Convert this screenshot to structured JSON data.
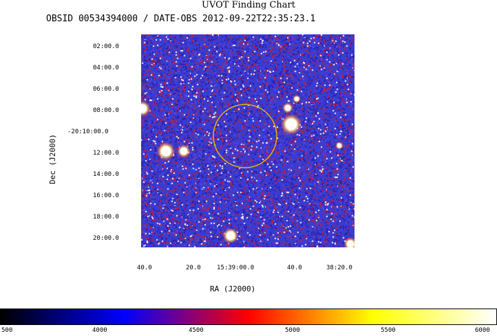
{
  "title": "UVOT Finding Chart",
  "subtitle": "OBSID 00534394000 / DATE-OBS 2012-09-22T22:35:23.1",
  "y_axis": {
    "label": "Dec (J2000)",
    "ticks": [
      "02:00.0",
      "04:00.0",
      "06:00.0",
      "08:00.0",
      "-20:10:00.0",
      "12:00.0",
      "14:00.0",
      "16:00.0",
      "18:00.0",
      "20:00.0"
    ]
  },
  "x_axis": {
    "label": "RA (J2000)",
    "ticks": [
      "40.0",
      "20.0",
      "15:39:00.0",
      "40.0",
      "38:20.0"
    ]
  },
  "colorbar": {
    "ticks": [
      "500",
      "4000",
      "4500",
      "5000",
      "5500",
      "6000"
    ],
    "gradient": [
      "#000000",
      "#0000ff",
      "#ff0000",
      "#ffff00",
      "#ffffff"
    ]
  },
  "image": {
    "background_colors": [
      "#3b3bd0",
      "#2a1fa8",
      "#c0203a",
      "#ffffff"
    ],
    "circle_color": "#e8b400"
  }
}
